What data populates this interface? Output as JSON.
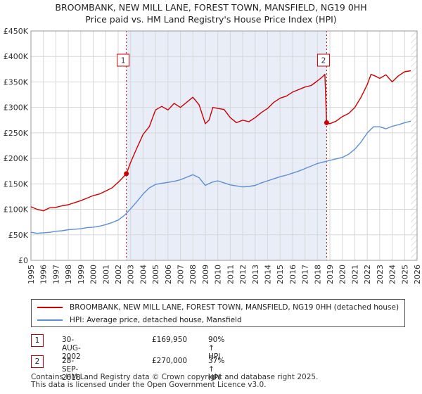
{
  "chart_data": {
    "type": "line",
    "title": "BROOMBANK, NEW MILL LANE, FOREST TOWN, MANSFIELD, NG19 0HH",
    "subtitle": "Price paid vs. HM Land Registry's House Price Index (HPI)",
    "xlabel": "",
    "ylabel": "",
    "xlim": [
      1995,
      2026
    ],
    "ylim": [
      0,
      450000
    ],
    "x_ticks": [
      "1995",
      "1996",
      "1997",
      "1998",
      "1999",
      "2000",
      "2001",
      "2002",
      "2003",
      "2004",
      "2005",
      "2006",
      "2007",
      "2008",
      "2009",
      "2010",
      "2011",
      "2012",
      "2013",
      "2014",
      "2015",
      "2016",
      "2017",
      "2018",
      "2019",
      "2020",
      "2021",
      "2022",
      "2023",
      "2024",
      "2025",
      "2026"
    ],
    "y_ticks": [
      {
        "value": 0,
        "label": "£0"
      },
      {
        "value": 50000,
        "label": "£50K"
      },
      {
        "value": 100000,
        "label": "£100K"
      },
      {
        "value": 150000,
        "label": "£150K"
      },
      {
        "value": 200000,
        "label": "£200K"
      },
      {
        "value": 250000,
        "label": "£250K"
      },
      {
        "value": 300000,
        "label": "£300K"
      },
      {
        "value": 350000,
        "label": "£350K"
      },
      {
        "value": 400000,
        "label": "£400K"
      },
      {
        "value": 450000,
        "label": "£450K"
      }
    ],
    "grid": true,
    "shaded_ranges": [
      [
        2002.66,
        2018.74
      ]
    ],
    "hatched_from": 2025.5,
    "colors": {
      "property": "#cc0000",
      "hpi": "#5b8fd6",
      "shade": "#e8edf8",
      "grid": "#d7d7d7"
    },
    "series": [
      {
        "name": "BROOMBANK, NEW MILL LANE, FOREST TOWN, MANSFIELD, NG19 0HH (detached house)",
        "x": [
          1995.0,
          1995.5,
          1996.0,
          1996.5,
          1997.0,
          1997.5,
          1998.0,
          1998.5,
          1999.0,
          1999.5,
          2000.0,
          2000.5,
          2001.0,
          2001.5,
          2002.0,
          2002.4,
          2002.66,
          2003.0,
          2003.5,
          2004.0,
          2004.5,
          2005.0,
          2005.5,
          2006.0,
          2006.5,
          2007.0,
          2007.5,
          2008.0,
          2008.5,
          2009.0,
          2009.3,
          2009.6,
          2010.0,
          2010.5,
          2011.0,
          2011.5,
          2012.0,
          2012.5,
          2013.0,
          2013.5,
          2014.0,
          2014.5,
          2015.0,
          2015.5,
          2016.0,
          2016.5,
          2017.0,
          2017.5,
          2018.0,
          2018.4,
          2018.6,
          2018.74,
          2019.0,
          2019.5,
          2020.0,
          2020.5,
          2021.0,
          2021.5,
          2022.0,
          2022.3,
          2022.6,
          2023.0,
          2023.5,
          2024.0,
          2024.5,
          2025.0,
          2025.5
        ],
        "values": [
          105000,
          100000,
          97000,
          103000,
          104000,
          107000,
          109000,
          113000,
          117000,
          122000,
          127000,
          130000,
          136000,
          142000,
          153000,
          163000,
          169950,
          192000,
          220000,
          247000,
          262000,
          295000,
          302000,
          295000,
          308000,
          300000,
          310000,
          320000,
          305000,
          268000,
          275000,
          300000,
          298000,
          296000,
          280000,
          270000,
          275000,
          272000,
          280000,
          290000,
          298000,
          310000,
          318000,
          322000,
          330000,
          335000,
          340000,
          343000,
          352000,
          360000,
          365000,
          270000,
          268000,
          273000,
          282000,
          288000,
          300000,
          320000,
          345000,
          365000,
          362000,
          357000,
          364000,
          350000,
          362000,
          370000,
          372000
        ]
      },
      {
        "name": "HPI: Average price, detached house, Mansfield",
        "x": [
          1995.0,
          1995.5,
          1996.0,
          1996.5,
          1997.0,
          1997.5,
          1998.0,
          1998.5,
          1999.0,
          1999.5,
          2000.0,
          2000.5,
          2001.0,
          2001.5,
          2002.0,
          2002.5,
          2003.0,
          2003.5,
          2004.0,
          2004.5,
          2005.0,
          2005.5,
          2006.0,
          2006.5,
          2007.0,
          2007.5,
          2008.0,
          2008.5,
          2009.0,
          2009.5,
          2010.0,
          2010.5,
          2011.0,
          2011.5,
          2012.0,
          2012.5,
          2013.0,
          2013.5,
          2014.0,
          2014.5,
          2015.0,
          2015.5,
          2016.0,
          2016.5,
          2017.0,
          2017.5,
          2018.0,
          2018.5,
          2019.0,
          2019.5,
          2020.0,
          2020.5,
          2021.0,
          2021.5,
          2022.0,
          2022.5,
          2023.0,
          2023.5,
          2024.0,
          2024.5,
          2025.0,
          2025.5
        ],
        "values": [
          55000,
          53000,
          54000,
          55000,
          57000,
          58000,
          60000,
          61000,
          62000,
          64000,
          65000,
          67000,
          70000,
          74000,
          79000,
          88000,
          101000,
          115000,
          130000,
          142000,
          149000,
          151000,
          153000,
          155000,
          158000,
          163000,
          168000,
          162000,
          147000,
          153000,
          156000,
          152000,
          148000,
          146000,
          144000,
          145000,
          147000,
          152000,
          156000,
          160000,
          164000,
          167000,
          171000,
          175000,
          180000,
          185000,
          190000,
          193000,
          196000,
          199000,
          202000,
          208000,
          218000,
          232000,
          250000,
          262000,
          262000,
          258000,
          263000,
          266000,
          270000,
          273000
        ]
      }
    ],
    "sales": [
      {
        "marker": "1",
        "x": 2002.66,
        "y": 169950
      },
      {
        "marker": "2",
        "x": 2018.74,
        "y": 270000
      }
    ]
  },
  "legend": {
    "property_label": "BROOMBANK, NEW MILL LANE, FOREST TOWN, MANSFIELD, NG19 0HH (detached house)",
    "hpi_label": "HPI: Average price, detached house, Mansfield"
  },
  "sales_table": [
    {
      "marker": "1",
      "date": "30-AUG-2002",
      "price": "£169,950",
      "hpi": "90% ↑ HPI"
    },
    {
      "marker": "2",
      "date": "28-SEP-2018",
      "price": "£270,000",
      "hpi": "37% ↑ HPI"
    }
  ],
  "footer": {
    "line1": "Contains HM Land Registry data © Crown copyright and database right 2025.",
    "line2": "This data is licensed under the Open Government Licence v3.0."
  }
}
